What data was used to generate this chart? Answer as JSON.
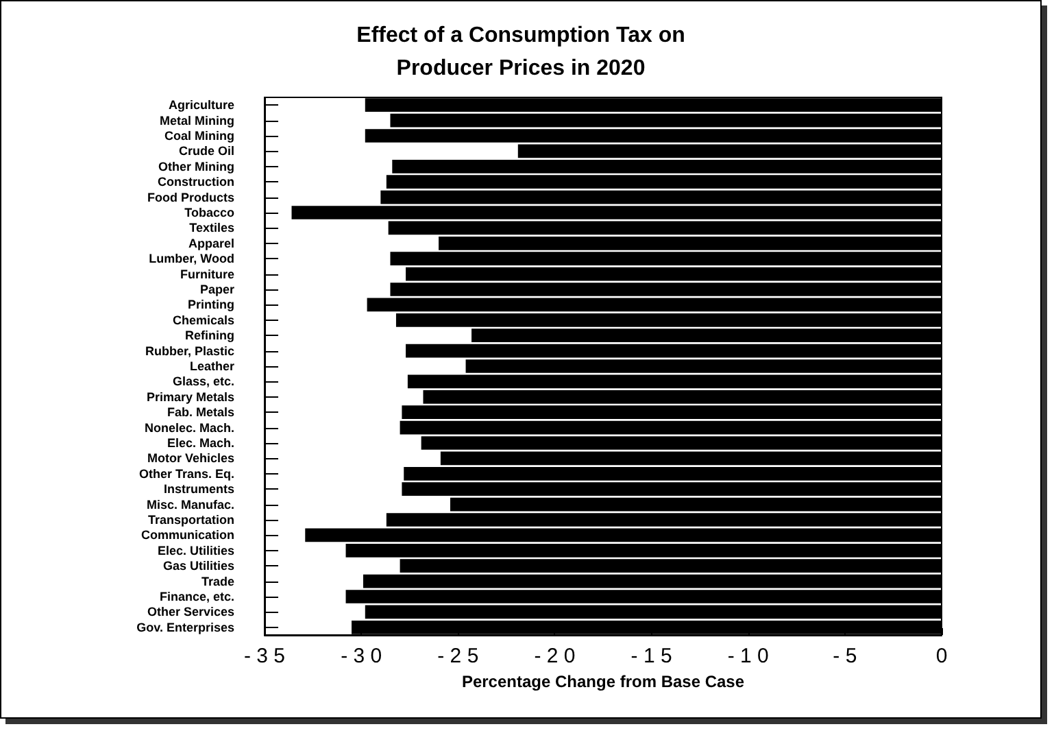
{
  "chart_data": {
    "type": "bar",
    "orientation": "horizontal",
    "title": "Effect of a Consumption Tax on\nProducer Prices in 2020",
    "xlabel": "Percentage Change from Base Case",
    "categories": [
      "Agriculture",
      "Metal Mining",
      "Coal Mining",
      "Crude Oil",
      "Other Mining",
      "Construction",
      "Food Products",
      "Tobacco",
      "Textiles",
      "Apparel",
      "Lumber, Wood",
      "Furniture",
      "Paper",
      "Printing",
      "Chemicals",
      "Refining",
      "Rubber, Plastic",
      "Leather",
      "Glass, etc.",
      "Primary Metals",
      "Fab. Metals",
      "Nonelec. Mach.",
      "Elec. Mach.",
      "Motor Vehicles",
      "Other Trans. Eq.",
      "Instruments",
      "Misc. Manufac.",
      "Transportation",
      "Communication",
      "Elec. Utilities",
      "Gas Utilities",
      "Trade",
      "Finance, etc.",
      "Other Services",
      "Gov. Enterprises"
    ],
    "values": [
      -29.8,
      -28.5,
      -29.8,
      -21.9,
      -28.4,
      -28.7,
      -29.0,
      -33.6,
      -28.6,
      -26.0,
      -28.5,
      -27.7,
      -28.5,
      -29.7,
      -28.2,
      -24.3,
      -27.7,
      -24.6,
      -27.6,
      -26.8,
      -27.9,
      -28.0,
      -26.9,
      -25.9,
      -27.8,
      -27.9,
      -25.4,
      -28.7,
      -32.9,
      -30.8,
      -28.0,
      -29.9,
      -30.8,
      -29.8,
      -30.5
    ],
    "color": "#000000",
    "xlim": [
      -35,
      0
    ],
    "xticks": [
      -35,
      -30,
      -25,
      -20,
      -15,
      -10,
      -5,
      0
    ],
    "grid": false
  }
}
